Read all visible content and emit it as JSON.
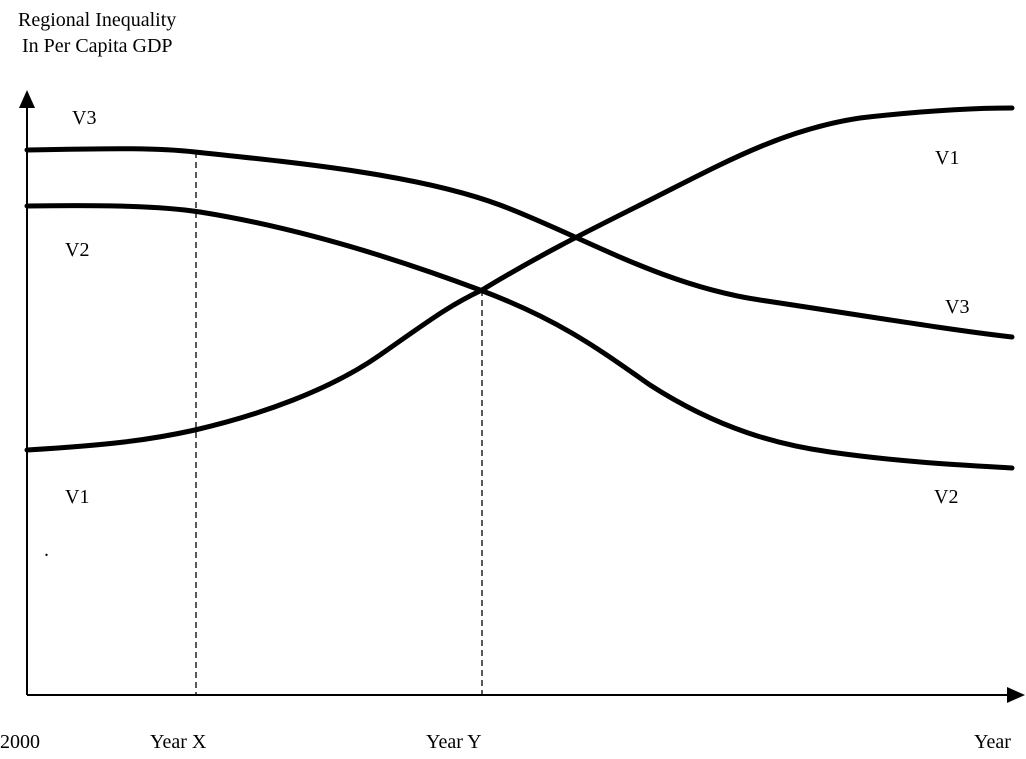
{
  "axes": {
    "y_label": [
      "Regional Inequality",
      "In Per Capita GDP"
    ],
    "x_labels": [
      "2000",
      "Year X",
      "Year Y",
      "Year"
    ]
  },
  "curves": [
    {
      "left_label": "V3",
      "right_label": "V3"
    },
    {
      "left_label": "V2",
      "right_label": "V2"
    },
    {
      "left_label": "V1",
      "right_label": "V1"
    }
  ],
  "stray_mark": "."
}
